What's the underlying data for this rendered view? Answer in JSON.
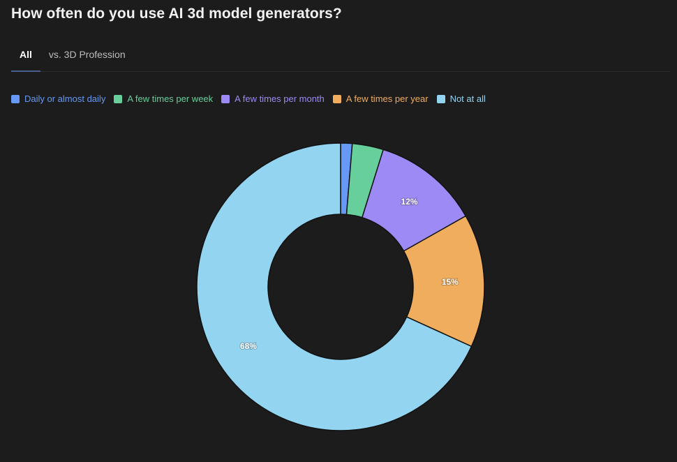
{
  "page": {
    "title": "How often do you use AI 3d model generators?"
  },
  "tabs": [
    {
      "label": "All",
      "active": true
    },
    {
      "label": "vs. 3D Profession",
      "active": false
    }
  ],
  "legend": [
    {
      "label": "Daily or almost daily",
      "color": "#6699f5"
    },
    {
      "label": "A few times per week",
      "color": "#66cf9b"
    },
    {
      "label": "A few times per month",
      "color": "#9d8af4"
    },
    {
      "label": "A few times per year",
      "color": "#f0ad5e"
    },
    {
      "label": "Not at all",
      "color": "#93d4f1"
    }
  ],
  "chart_data": {
    "type": "pie",
    "subtype": "donut",
    "title": "How often do you use AI 3d model generators?",
    "categories": [
      "Daily or almost daily",
      "A few times per week",
      "A few times per month",
      "A few times per year",
      "Not at all"
    ],
    "values": [
      1.3,
      3.5,
      12,
      15,
      68.2
    ],
    "unit": "%",
    "data_labels": [
      "",
      "",
      "12%",
      "15%",
      "68%"
    ],
    "colors": [
      "#6699f5",
      "#66cf9b",
      "#9d8af4",
      "#f0ad5e",
      "#93d4f1"
    ],
    "legend_position": "top-left",
    "start_angle": "12 o'clock, clockwise"
  }
}
